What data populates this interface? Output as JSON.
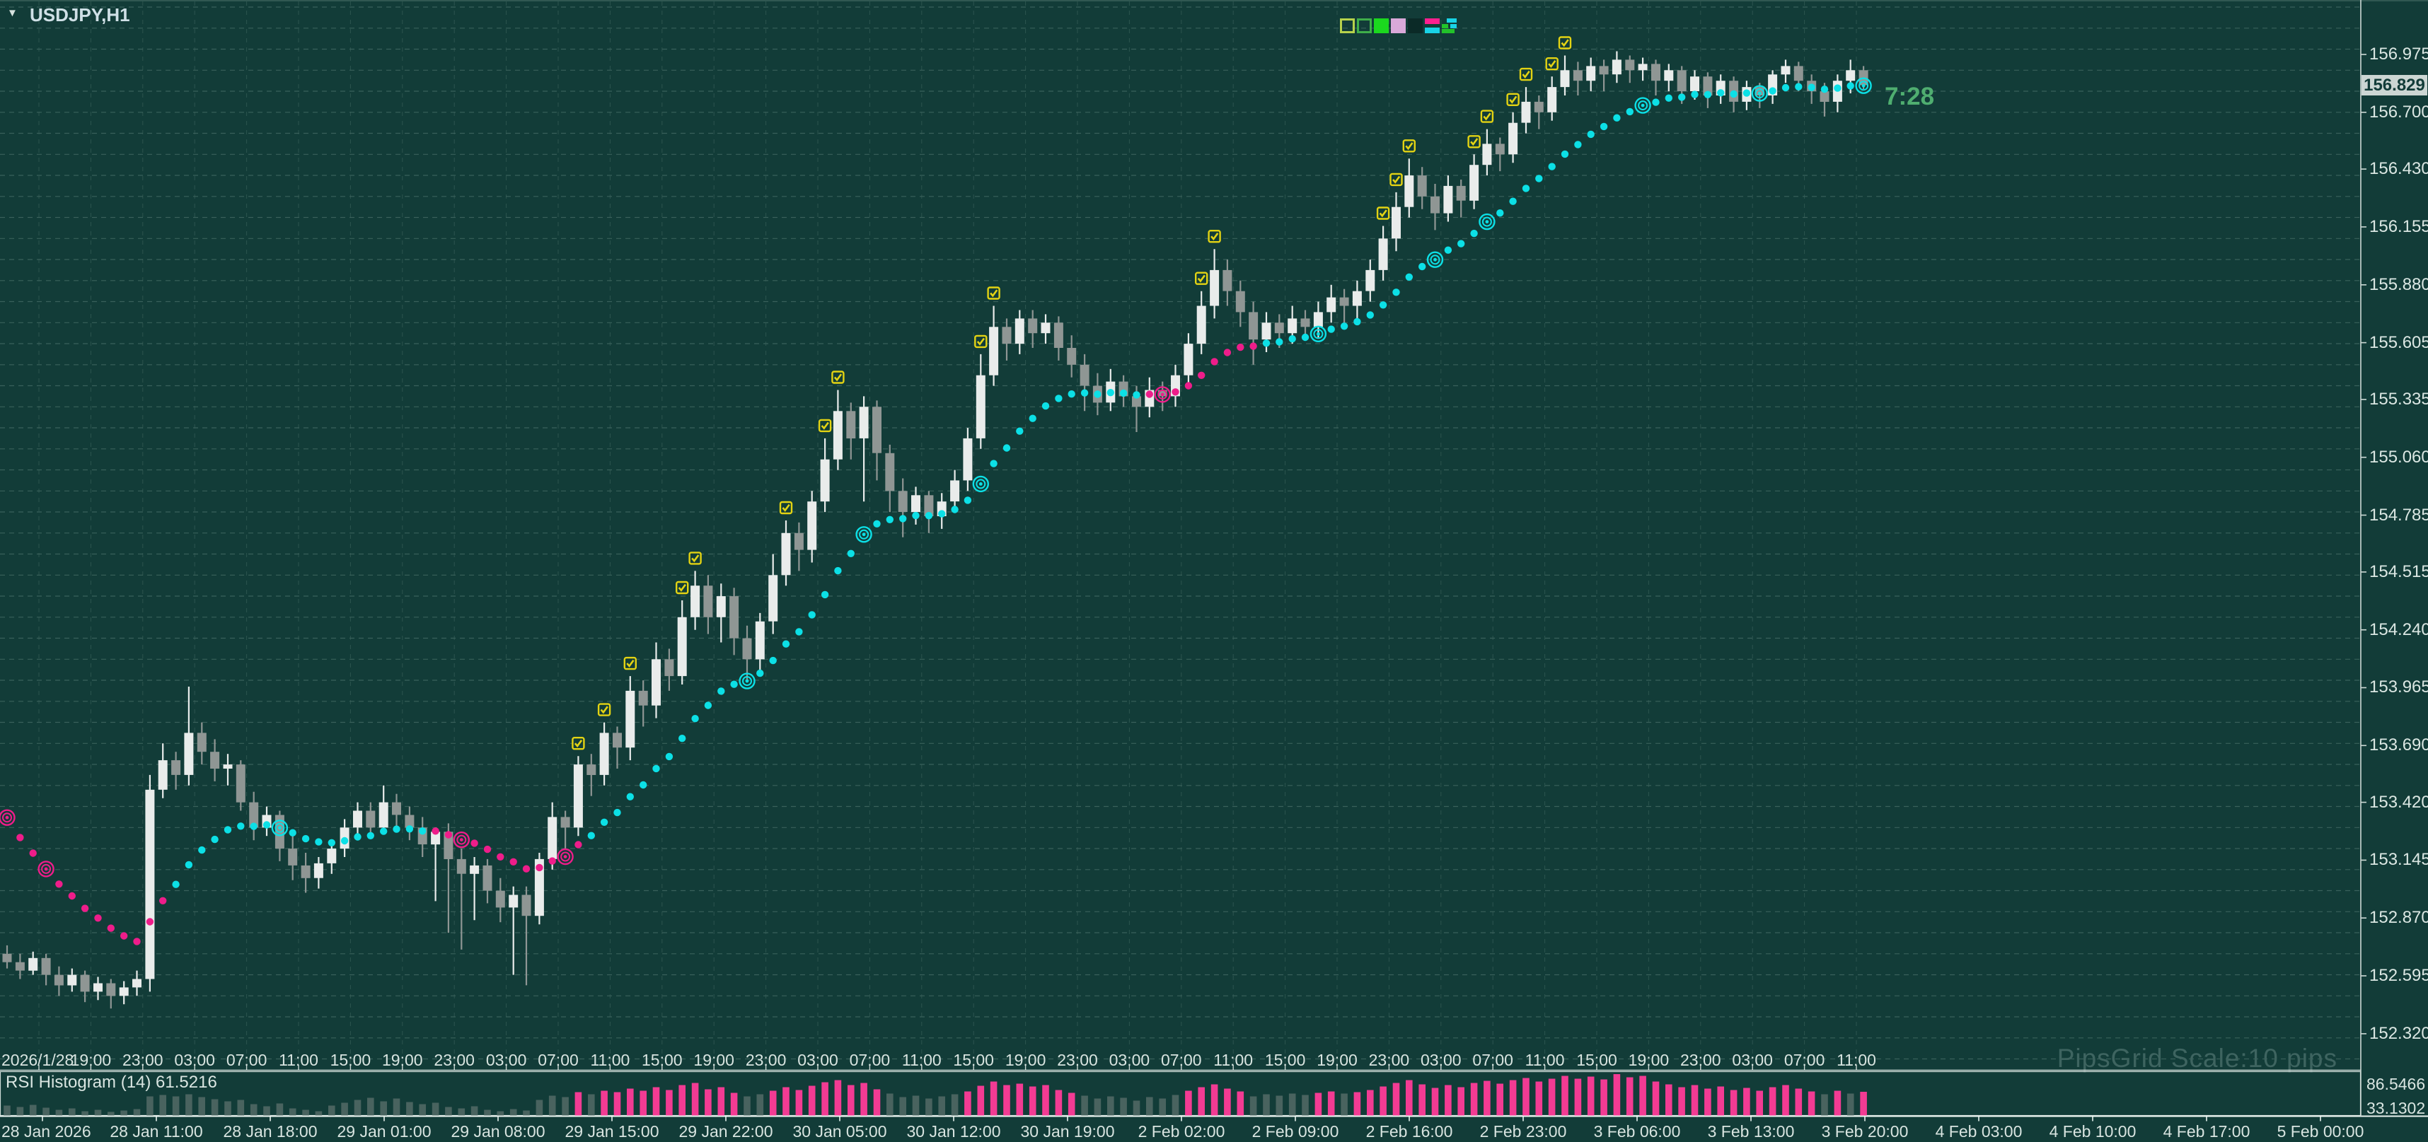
{
  "app": {
    "symbol_label": "USDJPY,H1",
    "caret": "▼",
    "countdown": "7:28",
    "watermark": "PipsGrid Scale:10 pips"
  },
  "toolbar": {
    "swatches": [
      {
        "name": "swatch-outline-yellowgreen",
        "type": "outline",
        "color": "#b7d24b"
      },
      {
        "name": "swatch-outline-green",
        "type": "outline",
        "color": "#3fae4a"
      },
      {
        "name": "swatch-fill-green",
        "type": "fill",
        "color": "#1bd81e"
      },
      {
        "name": "swatch-fill-plum",
        "type": "fill",
        "color": "#d9a9d9"
      },
      {
        "name": "swatch-fill-dark",
        "type": "fill",
        "color": "#0b2a27"
      },
      {
        "name": "swatch-split-pink-cyan",
        "type": "split",
        "top": "#ff1f8f",
        "bottom": "#19d3e6"
      },
      {
        "name": "swatch-mosaic-cyan-green",
        "type": "mosaic",
        "c1": "#19d3e6",
        "c2": "#22c32a"
      }
    ]
  },
  "price_axis": {
    "labels": [
      "156.975",
      "156.700",
      "156.430",
      "156.155",
      "155.880",
      "155.605",
      "155.335",
      "155.060",
      "154.785",
      "154.515",
      "154.240",
      "153.965",
      "153.690",
      "153.420",
      "153.145",
      "152.870",
      "152.595",
      "152.320"
    ],
    "current": "156.829"
  },
  "main_time_axis": {
    "labels": [
      "2026/1/28",
      "19:00",
      "23:00",
      "03:00",
      "07:00",
      "11:00",
      "15:00",
      "19:00",
      "23:00",
      "03:00",
      "07:00",
      "11:00",
      "15:00",
      "19:00",
      "23:00",
      "03:00",
      "07:00",
      "11:00",
      "15:00",
      "19:00",
      "23:00",
      "03:00",
      "07:00",
      "11:00",
      "15:00",
      "19:00",
      "23:00",
      "03:00",
      "07:00",
      "11:00",
      "15:00",
      "19:00",
      "23:00",
      "03:00",
      "07:00",
      "11:00"
    ]
  },
  "bottom_time_axis": {
    "labels": [
      "28 Jan 2026",
      "28 Jan 11:00",
      "28 Jan 18:00",
      "29 Jan 01:00",
      "29 Jan 08:00",
      "29 Jan 15:00",
      "29 Jan 22:00",
      "30 Jan 05:00",
      "30 Jan 12:00",
      "30 Jan 19:00",
      "2 Feb 02:00",
      "2 Feb 09:00",
      "2 Feb 16:00",
      "2 Feb 23:00",
      "3 Feb 06:00",
      "3 Feb 13:00",
      "3 Feb 20:00",
      "4 Feb 03:00",
      "4 Feb 10:00",
      "4 Feb 17:00",
      "5 Feb 00:00"
    ]
  },
  "rsi_pane": {
    "label": "RSI Histogram (14) 61.5216",
    "max": "86.5466",
    "min": "33.1302",
    "threshold": 60
  },
  "theme": {
    "background": "#123c38",
    "grid": "#3a615b",
    "axis_line": "#cdd9d5",
    "text": "#d9e5e1",
    "bull": "#e9eceb",
    "bear": "#8f9694",
    "ma_cyan": "#0ce0e6",
    "ma_pink": "#ee1d8a",
    "marker_yellow": "#e3d313",
    "timer_green": "#4fae70",
    "rsi_pink": "#f23b93",
    "rsi_slate": "#49635f",
    "current_box_bg": "#ccd6d3"
  },
  "chart_data": {
    "type": "candlestick",
    "symbol": "USDJPY",
    "timeframe": "H1",
    "price_range_visible": [
      152.16,
      157.23
    ],
    "grid_step_pips": 10,
    "candles": [
      [
        152.7,
        152.74,
        152.63,
        152.66
      ],
      [
        152.66,
        152.7,
        152.58,
        152.62
      ],
      [
        152.62,
        152.71,
        152.6,
        152.68
      ],
      [
        152.68,
        152.7,
        152.55,
        152.6
      ],
      [
        152.6,
        152.64,
        152.5,
        152.55
      ],
      [
        152.55,
        152.63,
        152.52,
        152.6
      ],
      [
        152.6,
        152.62,
        152.47,
        152.52
      ],
      [
        152.52,
        152.59,
        152.48,
        152.56
      ],
      [
        152.56,
        152.58,
        152.44,
        152.5
      ],
      [
        152.5,
        152.57,
        152.46,
        152.54
      ],
      [
        152.54,
        152.62,
        152.5,
        152.58
      ],
      [
        152.58,
        153.55,
        152.52,
        153.48
      ],
      [
        153.48,
        153.7,
        153.44,
        153.62
      ],
      [
        153.62,
        153.66,
        153.48,
        153.55
      ],
      [
        153.55,
        153.97,
        153.5,
        153.75
      ],
      [
        153.75,
        153.8,
        153.6,
        153.66
      ],
      [
        153.66,
        153.72,
        153.52,
        153.58
      ],
      [
        153.58,
        153.65,
        153.5,
        153.6
      ],
      [
        153.6,
        153.62,
        153.38,
        153.42
      ],
      [
        153.42,
        153.47,
        153.24,
        153.3
      ],
      [
        153.3,
        153.4,
        153.26,
        153.36
      ],
      [
        153.36,
        153.38,
        153.14,
        153.2
      ],
      [
        153.2,
        153.26,
        153.05,
        153.12
      ],
      [
        153.12,
        153.18,
        152.99,
        153.06
      ],
      [
        153.06,
        153.16,
        153.01,
        153.13
      ],
      [
        153.13,
        153.24,
        153.08,
        153.2
      ],
      [
        153.2,
        153.34,
        153.16,
        153.3
      ],
      [
        153.3,
        153.42,
        153.26,
        153.38
      ],
      [
        153.38,
        153.42,
        153.25,
        153.3
      ],
      [
        153.3,
        153.5,
        153.27,
        153.42
      ],
      [
        153.42,
        153.46,
        153.3,
        153.36
      ],
      [
        153.36,
        153.4,
        153.24,
        153.3
      ],
      [
        153.3,
        153.35,
        153.16,
        153.22
      ],
      [
        153.22,
        153.3,
        152.95,
        153.28
      ],
      [
        153.28,
        153.32,
        152.8,
        153.15
      ],
      [
        153.15,
        153.2,
        152.72,
        153.08
      ],
      [
        153.08,
        153.16,
        152.86,
        153.12
      ],
      [
        153.12,
        153.15,
        152.94,
        153.0
      ],
      [
        153.0,
        153.06,
        152.85,
        152.92
      ],
      [
        152.92,
        153.02,
        152.6,
        152.98
      ],
      [
        152.98,
        153.02,
        152.55,
        152.88
      ],
      [
        152.88,
        153.18,
        152.84,
        153.15
      ],
      [
        153.15,
        153.42,
        153.1,
        153.35
      ],
      [
        153.35,
        153.38,
        153.2,
        153.3
      ],
      [
        153.3,
        153.64,
        153.26,
        153.6
      ],
      [
        153.6,
        153.65,
        153.45,
        153.55
      ],
      [
        153.55,
        153.8,
        153.5,
        153.75
      ],
      [
        153.75,
        153.78,
        153.58,
        153.68
      ],
      [
        153.68,
        154.02,
        153.62,
        153.95
      ],
      [
        153.95,
        154.0,
        153.78,
        153.88
      ],
      [
        153.88,
        154.18,
        153.82,
        154.1
      ],
      [
        154.1,
        154.15,
        153.95,
        154.02
      ],
      [
        154.02,
        154.38,
        153.98,
        154.3
      ],
      [
        154.3,
        154.52,
        154.24,
        154.45
      ],
      [
        154.45,
        154.5,
        154.22,
        154.3
      ],
      [
        154.3,
        154.46,
        154.18,
        154.4
      ],
      [
        154.4,
        154.44,
        154.12,
        154.2
      ],
      [
        154.2,
        154.26,
        154.0,
        154.1
      ],
      [
        154.1,
        154.32,
        154.05,
        154.28
      ],
      [
        154.28,
        154.6,
        154.22,
        154.5
      ],
      [
        154.5,
        154.76,
        154.45,
        154.7
      ],
      [
        154.7,
        154.75,
        154.52,
        154.62
      ],
      [
        154.62,
        154.9,
        154.56,
        154.85
      ],
      [
        154.85,
        155.15,
        154.8,
        155.05
      ],
      [
        155.05,
        155.38,
        155.0,
        155.28
      ],
      [
        155.28,
        155.32,
        155.05,
        155.15
      ],
      [
        155.15,
        155.35,
        154.85,
        155.3
      ],
      [
        155.3,
        155.33,
        154.95,
        155.08
      ],
      [
        155.08,
        155.12,
        154.8,
        154.9
      ],
      [
        154.9,
        154.96,
        154.68,
        154.8
      ],
      [
        154.8,
        154.92,
        154.74,
        154.88
      ],
      [
        154.88,
        154.9,
        154.7,
        154.78
      ],
      [
        154.78,
        154.89,
        154.72,
        154.85
      ],
      [
        154.85,
        155.0,
        154.8,
        154.95
      ],
      [
        154.95,
        155.2,
        154.9,
        155.15
      ],
      [
        155.15,
        155.55,
        155.1,
        155.45
      ],
      [
        155.45,
        155.78,
        155.4,
        155.68
      ],
      [
        155.68,
        155.72,
        155.52,
        155.6
      ],
      [
        155.6,
        155.76,
        155.55,
        155.72
      ],
      [
        155.72,
        155.76,
        155.58,
        155.65
      ],
      [
        155.65,
        155.74,
        155.6,
        155.7
      ],
      [
        155.7,
        155.73,
        155.52,
        155.58
      ],
      [
        155.58,
        155.64,
        155.44,
        155.5
      ],
      [
        155.5,
        155.55,
        155.28,
        155.4
      ],
      [
        155.4,
        155.46,
        155.26,
        155.32
      ],
      [
        155.32,
        155.48,
        155.28,
        155.42
      ],
      [
        155.42,
        155.45,
        155.3,
        155.35
      ],
      [
        155.35,
        155.4,
        155.18,
        155.3
      ],
      [
        155.3,
        155.44,
        155.25,
        155.38
      ],
      [
        155.38,
        155.42,
        155.28,
        155.35
      ],
      [
        155.35,
        155.5,
        155.3,
        155.45
      ],
      [
        155.45,
        155.65,
        155.4,
        155.6
      ],
      [
        155.6,
        155.85,
        155.55,
        155.78
      ],
      [
        155.78,
        156.05,
        155.72,
        155.95
      ],
      [
        155.95,
        156.0,
        155.78,
        155.85
      ],
      [
        155.85,
        155.9,
        155.68,
        155.75
      ],
      [
        155.75,
        155.8,
        155.5,
        155.62
      ],
      [
        155.62,
        155.75,
        155.56,
        155.7
      ],
      [
        155.7,
        155.74,
        155.58,
        155.65
      ],
      [
        155.65,
        155.78,
        155.6,
        155.72
      ],
      [
        155.72,
        155.76,
        155.62,
        155.68
      ],
      [
        155.68,
        155.8,
        155.63,
        155.75
      ],
      [
        155.75,
        155.88,
        155.7,
        155.82
      ],
      [
        155.82,
        155.86,
        155.7,
        155.78
      ],
      [
        155.78,
        155.9,
        155.72,
        155.85
      ],
      [
        155.85,
        156.0,
        155.8,
        155.95
      ],
      [
        155.95,
        156.16,
        155.9,
        156.1
      ],
      [
        156.1,
        156.32,
        156.04,
        156.25
      ],
      [
        156.25,
        156.48,
        156.2,
        156.4
      ],
      [
        156.4,
        156.44,
        156.24,
        156.3
      ],
      [
        156.3,
        156.36,
        156.14,
        156.22
      ],
      [
        156.22,
        156.4,
        156.18,
        156.35
      ],
      [
        156.35,
        156.38,
        156.2,
        156.28
      ],
      [
        156.28,
        156.5,
        156.24,
        156.45
      ],
      [
        156.45,
        156.62,
        156.4,
        156.55
      ],
      [
        156.55,
        156.58,
        156.42,
        156.5
      ],
      [
        156.5,
        156.7,
        156.46,
        156.65
      ],
      [
        156.65,
        156.82,
        156.6,
        156.75
      ],
      [
        156.75,
        156.78,
        156.62,
        156.7
      ],
      [
        156.7,
        156.87,
        156.66,
        156.82
      ],
      [
        156.82,
        156.97,
        156.78,
        156.9
      ],
      [
        156.9,
        156.94,
        156.78,
        156.85
      ],
      [
        156.85,
        156.96,
        156.8,
        156.92
      ],
      [
        156.92,
        156.95,
        156.8,
        156.88
      ],
      [
        156.88,
        156.99,
        156.84,
        156.95
      ],
      [
        156.95,
        156.97,
        156.84,
        156.9
      ],
      [
        156.9,
        156.96,
        156.85,
        156.93
      ],
      [
        156.93,
        156.95,
        156.78,
        156.85
      ],
      [
        156.85,
        156.93,
        156.8,
        156.9
      ],
      [
        156.9,
        156.92,
        156.74,
        156.8
      ],
      [
        156.8,
        156.9,
        156.76,
        156.87
      ],
      [
        156.87,
        156.89,
        156.72,
        156.78
      ],
      [
        156.78,
        156.88,
        156.74,
        156.85
      ],
      [
        156.85,
        156.87,
        156.7,
        156.75
      ],
      [
        156.75,
        156.85,
        156.71,
        156.82
      ],
      [
        156.82,
        156.84,
        156.72,
        156.78
      ],
      [
        156.78,
        156.9,
        156.74,
        156.88
      ],
      [
        156.88,
        156.95,
        156.84,
        156.92
      ],
      [
        156.92,
        156.94,
        156.8,
        156.85
      ],
      [
        156.85,
        156.88,
        156.74,
        156.8
      ],
      [
        156.8,
        156.84,
        156.68,
        156.75
      ],
      [
        156.75,
        156.88,
        156.7,
        156.85
      ],
      [
        156.85,
        156.95,
        156.79,
        156.9
      ],
      [
        156.9,
        156.92,
        156.81,
        156.829
      ]
    ],
    "buy_markers": [
      44,
      46,
      48,
      52,
      53,
      60,
      63,
      64,
      75,
      76,
      92,
      93,
      106,
      107,
      108,
      113,
      114,
      116,
      117,
      119,
      120
    ],
    "ma": {
      "alpha": 0.13,
      "seed": 153.45,
      "pink_ranges": [
        [
          0,
          12
        ],
        [
          33,
          44
        ],
        [
          88,
          96
        ]
      ],
      "big_dots": [
        0,
        3,
        21,
        35,
        43,
        57,
        66,
        75,
        89,
        101,
        110,
        114,
        126,
        135,
        143
      ]
    },
    "rsi": {
      "period": 14,
      "current": 61.5216,
      "scale_max": 86.5466,
      "scale_min": 33.1302,
      "values": [
        42,
        40,
        43,
        39,
        36,
        38,
        34,
        36,
        33.13,
        35,
        37,
        55,
        57,
        55,
        58,
        54,
        51,
        48,
        50,
        44,
        41,
        45,
        38,
        36,
        34,
        42,
        46,
        50,
        53,
        48,
        52,
        47,
        44,
        46,
        40,
        38,
        41,
        36,
        34,
        37,
        35,
        50,
        56,
        54,
        61,
        58,
        63,
        61,
        66,
        63,
        68,
        64,
        71,
        74,
        65,
        68,
        60,
        55,
        58,
        63,
        68,
        64,
        70,
        75,
        78,
        71,
        74,
        65,
        59,
        54,
        56,
        52,
        55,
        58,
        62,
        70,
        76,
        71,
        73,
        69,
        71,
        64,
        60,
        56,
        52,
        55,
        53,
        49,
        54,
        52,
        57,
        63,
        68,
        72,
        66,
        62,
        55,
        58,
        56,
        59,
        57,
        60,
        62,
        59,
        61,
        64,
        69,
        74,
        78,
        72,
        67,
        71,
        68,
        74,
        77,
        73,
        78,
        81,
        76,
        80,
        84,
        80,
        83,
        79,
        86.55,
        82,
        84,
        76,
        72,
        68,
        71,
        66,
        69,
        64,
        67,
        63,
        68,
        71,
        66,
        62,
        58,
        63,
        59,
        61.52
      ]
    }
  }
}
